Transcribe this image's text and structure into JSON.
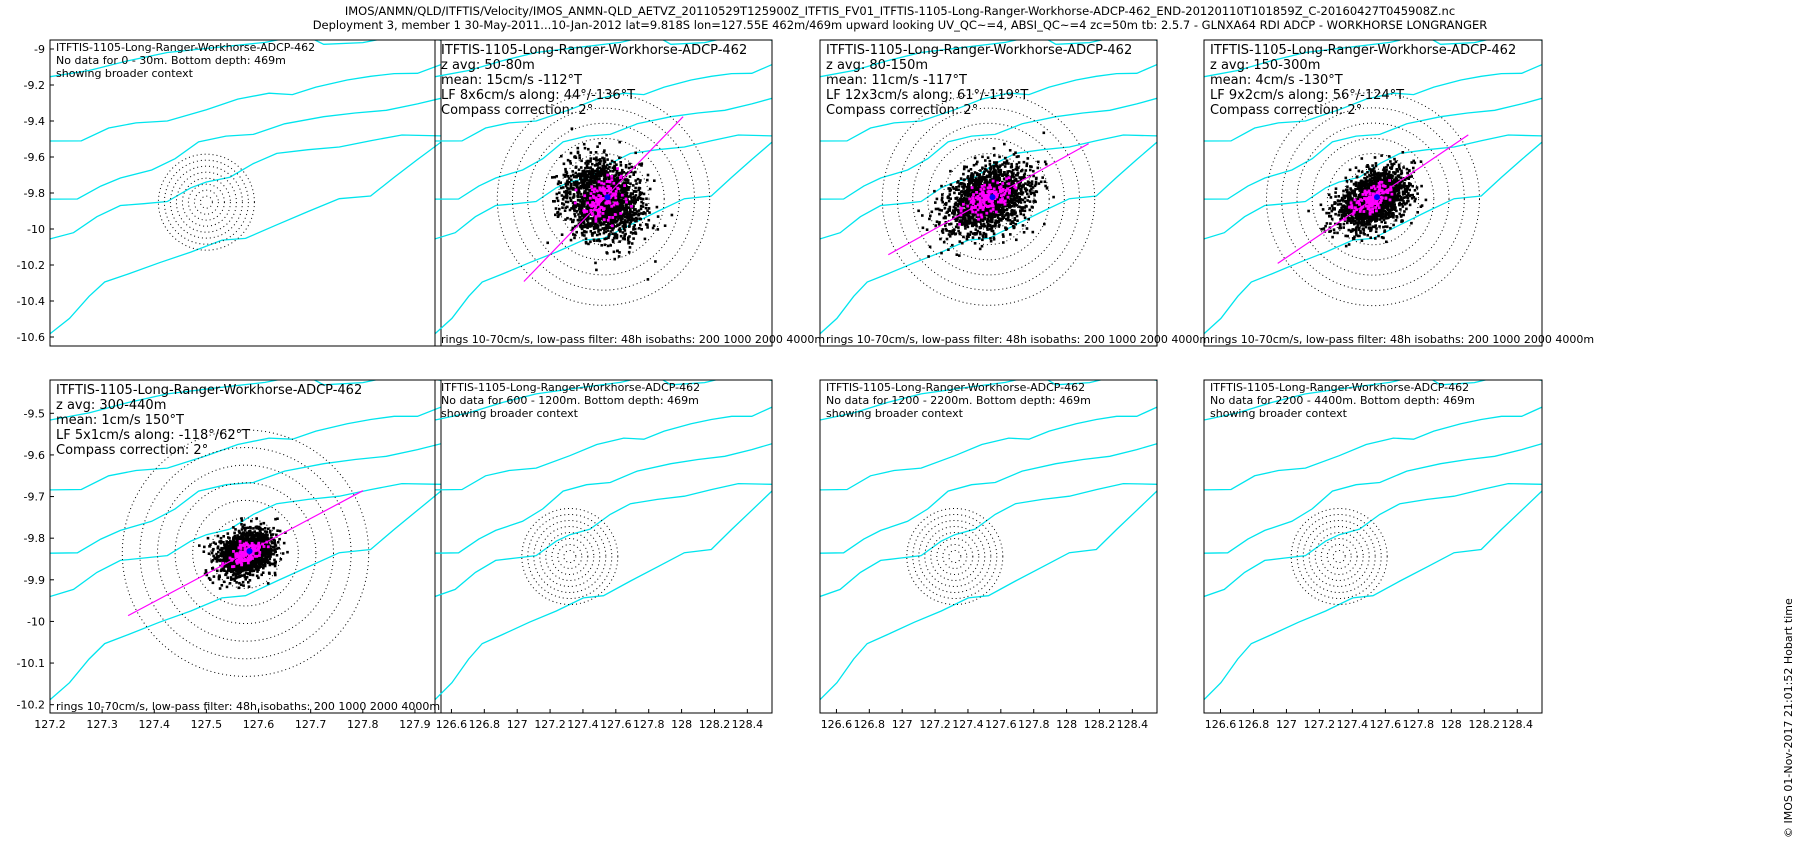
{
  "header": {
    "line1": "IMOS/ANMN/QLD/ITFTIS/Velocity/IMOS_ANMN-QLD_AETVZ_20110529T125900Z_ITFTIS_FV01_ITFTIS-1105-Long-Ranger-Workhorse-ADCP-462_END-20120110T101859Z_C-20160427T045908Z.nc",
    "line2": "Deployment 3, member 1 30-May-2011...10-Jan-2012 lat=9.818S lon=127.55E 462m/469m upward looking UV_QC~=4, ABSI_QC~=4 zc=50m tb: 2.5.7 - GLNXA64 RDI ADCP - WORKHORSE LONGRANGER"
  },
  "credit": "© IMOS 01-Nov-2017 21:01:52 Hobart time",
  "colors": {
    "isobath": "#00e5ee",
    "points": "#000000",
    "lowpass": "#ff00ff",
    "mean": "#0000ff",
    "rings": "#000000"
  },
  "chart_data": [
    {
      "type": "scatter",
      "empty": true,
      "texts": [
        "ITFTIS-1105-Long-Ranger-Workhorse-ADCP-462",
        "No data for 0 - 30m. Bottom depth: 469m",
        "showing broader context"
      ],
      "xlim": [
        127.2,
        127.95
      ],
      "ylim": [
        -10.65,
        -8.95
      ],
      "xticks": [],
      "yticks": [
        -9,
        -9.2,
        -9.4,
        -9.6,
        -9.8,
        -10,
        -10.2,
        -10.4,
        -10.6
      ],
      "footer": "",
      "grid": false
    },
    {
      "type": "scatter",
      "empty": false,
      "texts": [
        "ITFTIS-1105-Long-Ranger-Workhorse-ADCP-462",
        "z avg: 50-80m",
        "mean: 15cm/s -112°T",
        "LF 8x6cm/s along: 44°/-136°T",
        "Compass correction: 2°"
      ],
      "mean_speed": 15,
      "mean_dir_degT": -112,
      "ellipse_major": 8,
      "ellipse_minor": 6,
      "along_deg": 44,
      "footer": "rings 10-70cm/s, low-pass filter: 48h isobaths: 200 1000 2000 4000m",
      "grid": false
    },
    {
      "type": "scatter",
      "empty": false,
      "texts": [
        "ITFTIS-1105-Long-Ranger-Workhorse-ADCP-462",
        "z avg: 80-150m",
        "mean: 11cm/s -117°T",
        "LF 12x3cm/s along: 61°/-119°T",
        "Compass correction: 2°"
      ],
      "mean_speed": 11,
      "mean_dir_degT": -117,
      "ellipse_major": 12,
      "ellipse_minor": 3,
      "along_deg": 61,
      "footer": "rings 10-70cm/s, low-pass filter: 48h isobaths: 200 1000 2000 4000m",
      "grid": false
    },
    {
      "type": "scatter",
      "empty": false,
      "texts": [
        "ITFTIS-1105-Long-Ranger-Workhorse-ADCP-462",
        "z avg: 150-300m",
        "mean: 4cm/s -130°T",
        "LF 9x2cm/s along: 56°/-124°T",
        "Compass correction: 2°"
      ],
      "mean_speed": 4,
      "mean_dir_degT": -130,
      "ellipse_major": 9,
      "ellipse_minor": 2,
      "along_deg": 56,
      "footer": "rings 10-70cm/s, low-pass filter: 48h isobaths: 200 1000 2000 4000m",
      "grid": false
    },
    {
      "type": "scatter",
      "empty": false,
      "texts": [
        "ITFTIS-1105-Long-Ranger-Workhorse-ADCP-462",
        "z avg: 300-440m",
        "mean: 1cm/s 150°T",
        "LF 5x1cm/s along: -118°/62°T",
        "Compass correction: 2°"
      ],
      "mean_speed": 1,
      "mean_dir_degT": 150,
      "ellipse_major": 5,
      "ellipse_minor": 1,
      "along_deg": -118,
      "xlim": [
        127.2,
        127.95
      ],
      "ylim": [
        -10.22,
        -9.42
      ],
      "xticks": [
        127.2,
        127.3,
        127.4,
        127.5,
        127.6,
        127.7,
        127.8,
        127.9
      ],
      "yticks": [
        -9.5,
        -9.6,
        -9.7,
        -9.8,
        -9.9,
        -10,
        -10.1,
        -10.2
      ],
      "footer": "rings 10-70cm/s, low-pass filter: 48h,isobaths: 200 1000 2000 4000m",
      "grid": false
    },
    {
      "type": "scatter",
      "empty": true,
      "texts": [
        "ITFTIS-1105-Long-Ranger-Workhorse-ADCP-462",
        "No data for 600 - 1200m. Bottom depth: 469m",
        "showing broader context"
      ],
      "xlim": [
        126.5,
        128.55
      ],
      "xticks": [
        126.6,
        126.8,
        127,
        127.2,
        127.4,
        127.6,
        127.8,
        128,
        128.2,
        128.4
      ],
      "footer": "",
      "grid": false
    },
    {
      "type": "scatter",
      "empty": true,
      "texts": [
        "ITFTIS-1105-Long-Ranger-Workhorse-ADCP-462",
        "No data for 1200 - 2200m. Bottom depth: 469m",
        "showing broader context"
      ],
      "xlim": [
        126.5,
        128.55
      ],
      "xticks": [
        126.6,
        126.8,
        127,
        127.2,
        127.4,
        127.6,
        127.8,
        128,
        128.2,
        128.4
      ],
      "footer": "",
      "grid": false
    },
    {
      "type": "scatter",
      "empty": true,
      "texts": [
        "ITFTIS-1105-Long-Ranger-Workhorse-ADCP-462",
        "No data for 2200 - 4400m. Bottom depth: 469m",
        "showing broader context"
      ],
      "xlim": [
        126.5,
        128.55
      ],
      "xticks": [
        126.6,
        126.8,
        127,
        127.2,
        127.4,
        127.6,
        127.8,
        128,
        128.2,
        128.4
      ],
      "footer": "",
      "grid": false
    }
  ]
}
